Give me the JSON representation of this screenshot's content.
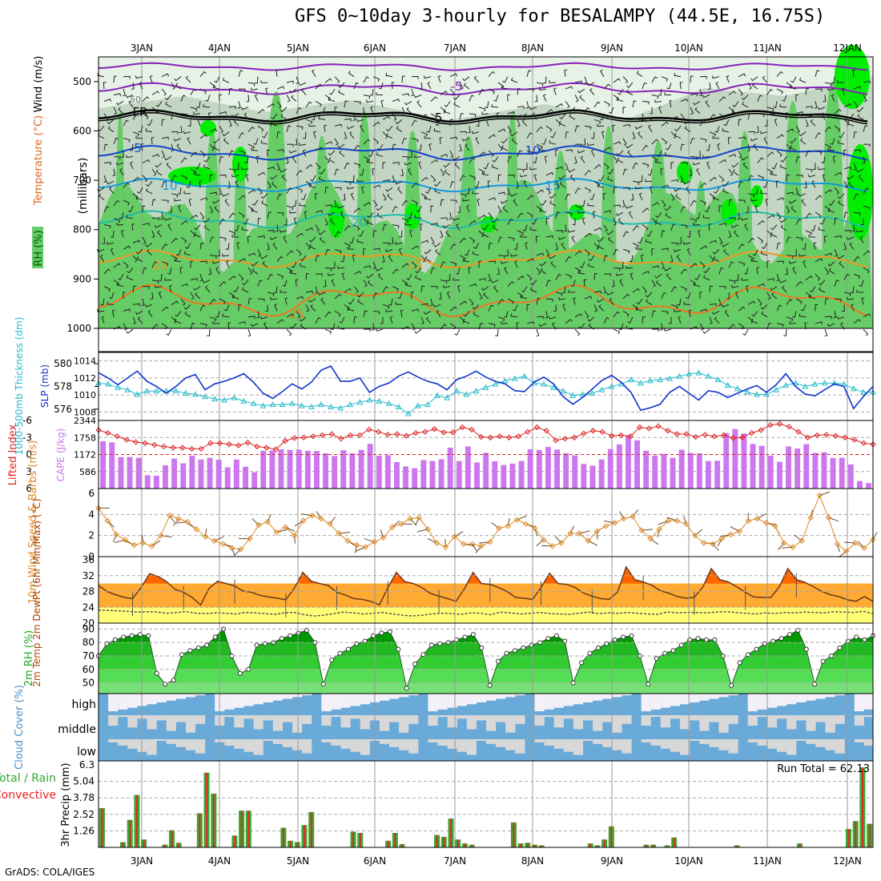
{
  "title": "GFS 0~10day 3-hourly for BESALAMPY (44.5E, 16.75S)",
  "footer": "GrADS: COLA/IGES",
  "dates": [
    "3JAN",
    "4JAN",
    "5JAN",
    "6JAN",
    "7JAN",
    "8JAN",
    "9JAN",
    "10JAN",
    "11JAN",
    "12JAN"
  ],
  "colors": {
    "rh_light": "#e6f2e6",
    "rh_mid": "#c3d6c3",
    "rh_green": "#66cc66",
    "rh_bright": "#00ee00",
    "temp_t_fill": "#ff6600",
    "temp_fill": "#ffaa33",
    "dew_fill": "#ffff77",
    "rh_dark": "#009900",
    "rh_med": "#33cc33",
    "rh_light2": "#66dd66",
    "cloud": "#6aaad8",
    "cloud_bg": "#d8d8d8",
    "cape": "#cc77ee",
    "li": "#dd2222",
    "slp": "#1133cc",
    "thick": "#22bbcc",
    "wind": "#dd8822",
    "rain_total": "#33aa33",
    "rain_conv": "#ee2222"
  },
  "chart_data": [
    {
      "type": "heatmap",
      "name": "upper",
      "ylabel_parts": [
        "RH (%)",
        "Temperature (°C)",
        "Wind (m/s)"
      ],
      "ylabel2": "(millibars)",
      "y_ticks": [
        "500",
        "600",
        "700",
        "800",
        "900",
        "1000"
      ],
      "ylim": [
        1000,
        450
      ],
      "isotherm_labels": [
        "-5",
        "FR",
        "-5",
        "5",
        "10",
        "10",
        "15",
        "20",
        "20",
        "25",
        "25"
      ],
      "contour_label": "50"
    },
    {
      "type": "line",
      "name": "slp_thickness",
      "ylabel_left": "1000-500mb Thickness (dm)",
      "ylabel_right": "SLP (mb)",
      "left_ticks": [
        "580",
        "578",
        "576"
      ],
      "right_ticks": [
        "1014",
        "1012",
        "1010",
        "1008"
      ],
      "slp": [
        1012.6,
        1012.0,
        1011.2,
        1012.0,
        1012.8,
        1011.6,
        1011.0,
        1010.2,
        1011.0,
        1012.0,
        1012.4,
        1010.6,
        1011.3,
        1011.6,
        1012.0,
        1012.5,
        1011.5,
        1010.2,
        1009.6,
        1010.4,
        1011.3,
        1010.7,
        1011.5,
        1012.9,
        1013.4,
        1011.6,
        1011.6,
        1012.0,
        1010.3,
        1011.0,
        1011.4,
        1012.2,
        1012.7,
        1012.1,
        1011.6,
        1011.3,
        1010.6,
        1011.8,
        1012.2,
        1012.8,
        1012.1,
        1011.6,
        1011.3,
        1010.5,
        1010.4,
        1011.5,
        1012.1,
        1011.3,
        1009.8,
        1008.9,
        1009.7,
        1010.7,
        1011.7,
        1012.3,
        1011.5,
        1010.3,
        1008.2,
        1008.5,
        1008.9,
        1010.3,
        1011.0,
        1010.2,
        1009.4,
        1010.5,
        1010.3,
        1009.7,
        1010.2,
        1010.7,
        1011.1,
        1010.3,
        1011.2,
        1012.5,
        1011.0,
        1010.1,
        1009.9,
        1010.6,
        1011.3,
        1011.0,
        1008.4,
        1009.8,
        1011.0
      ],
      "thickness": [
        578.3,
        578.2,
        577.9,
        577.7,
        577.3,
        577.6,
        577.6,
        577.6,
        577.6,
        577.4,
        577.3,
        577.1,
        576.9,
        576.8,
        577.0,
        576.7,
        576.5,
        576.3,
        576.4,
        576.4,
        576.5,
        576.3,
        576.2,
        576.4,
        576.2,
        576.1,
        576.4,
        576.6,
        576.8,
        576.7,
        576.5,
        576.2,
        575.6,
        576.3,
        576.4,
        577.2,
        577.0,
        577.6,
        577.3,
        577.6,
        577.9,
        578.2,
        578.5,
        578.7,
        578.9,
        578.3,
        578.2,
        577.9,
        577.6,
        577.2,
        577.3,
        577.4,
        577.7,
        578.0,
        578.2,
        578.6,
        578.3,
        578.5,
        578.6,
        578.7,
        578.9,
        579.1,
        579.2,
        578.9,
        578.6,
        578.1,
        577.8,
        577.5,
        577.3,
        577.3,
        577.7,
        578.1,
        578.3,
        578.0,
        578.2,
        578.3,
        578.3,
        578.2,
        577.8,
        577.5,
        577.5
      ]
    },
    {
      "type": "bar",
      "name": "cape_li",
      "ylabel_left": "Lifted Index",
      "ylabel_right": "CAPE (J/kg)",
      "li_ticks": [
        "-6",
        "-3",
        "0",
        "3",
        "6"
      ],
      "cape_ticks": [
        "2344",
        "1758",
        "1172",
        "586"
      ],
      "cape": [
        1630,
        1590,
        1080,
        1090,
        1060,
        460,
        440,
        800,
        1030,
        870,
        1130,
        1000,
        1060,
        990,
        730,
        1000,
        750,
        560,
        1300,
        1310,
        1350,
        1330,
        1340,
        1300,
        1290,
        1210,
        1120,
        1320,
        1210,
        1330,
        1540,
        1130,
        1150,
        910,
        760,
        700,
        980,
        950,
        1010,
        1410,
        950,
        1450,
        900,
        1230,
        940,
        810,
        860,
        950,
        1350,
        1330,
        1430,
        1340,
        1220,
        1140,
        850,
        790,
        1000,
        1360,
        1520,
        1830,
        1660,
        1300,
        1140,
        1190,
        1060,
        1340,
        1230,
        1210,
        950,
        960,
        1910,
        2050,
        1900,
        1540,
        1470,
        1130,
        920,
        1450,
        1380,
        1530,
        1230,
        1250,
        1050,
        1060,
        830,
        260,
        190
      ],
      "li": [
        -4.3,
        -3.8,
        -3.2,
        -2.6,
        -2.2,
        -2.0,
        -1.7,
        -1.4,
        -1.2,
        -1.2,
        -1.0,
        -1.0,
        -2.0,
        -2.0,
        -1.8,
        -1.6,
        -2.1,
        -1.4,
        -1.2,
        -0.9,
        -2.4,
        -2.9,
        -3.0,
        -3.2,
        -3.4,
        -3.6,
        -2.8,
        -3.4,
        -3.4,
        -4.4,
        -4.0,
        -3.5,
        -3.6,
        -3.3,
        -3.8,
        -4.0,
        -4.5,
        -3.9,
        -3.9,
        -4.8,
        -4.4,
        -3.1,
        -3.0,
        -3.2,
        -3.0,
        -3.2,
        -4.0,
        -4.8,
        -4.2,
        -2.5,
        -2.8,
        -3.0,
        -3.7,
        -4.2,
        -4.0,
        -3.3,
        -3.4,
        -3.2,
        -4.8,
        -4.6,
        -5.0,
        -4.2,
        -3.6,
        -3.6,
        -3.1,
        -3.5,
        -3.2,
        -3.4,
        -2.9,
        -3.0,
        -3.8,
        -4.3,
        -5.2,
        -5.4,
        -4.9,
        -4.0,
        -3.0,
        -3.4,
        -3.5,
        -3.3,
        -3.0,
        -2.6,
        -2.0,
        -1.8
      ]
    },
    {
      "type": "line",
      "name": "wind10m",
      "ylabel": "10m Wind Speed & Barbs (m/s)",
      "y_ticks": [
        "6",
        "4",
        "2",
        "0"
      ],
      "ylim": [
        0,
        6
      ],
      "speed": [
        4.6,
        3.4,
        2.1,
        1.6,
        1.1,
        1.3,
        1.0,
        2.0,
        3.9,
        3.6,
        3.3,
        2.6,
        1.9,
        1.5,
        1.2,
        0.8,
        0.7,
        1.7,
        3.0,
        3.3,
        2.3,
        2.8,
        2.0,
        3.4,
        3.9,
        3.6,
        3.1,
        2.2,
        1.5,
        1.1,
        0.9,
        1.4,
        1.8,
        2.8,
        3.1,
        3.6,
        3.7,
        2.6,
        1.3,
        0.9,
        1.9,
        1.2,
        1.2,
        1.0,
        1.4,
        2.7,
        2.9,
        3.5,
        3.1,
        2.7,
        1.6,
        1.0,
        1.3,
        2.2,
        2.2,
        1.5,
        2.4,
        2.9,
        3.2,
        3.6,
        3.8,
        2.5,
        1.7,
        2.6,
        3.4,
        3.4,
        3.1,
        2.0,
        1.3,
        1.2,
        1.7,
        2.1,
        2.4,
        3.4,
        3.6,
        3.2,
        2.9,
        1.3,
        0.9,
        1.5,
        3.7,
        5.8,
        3.7,
        1.2,
        0.5,
        1.3,
        0.8,
        1.6
      ]
    },
    {
      "type": "area",
      "name": "temp2m",
      "ylabel": "2m Temp 2m DewPt (6hr Min/Max) (°C)",
      "y_ticks": [
        "36",
        "32",
        "28",
        "24",
        "20"
      ],
      "ylim": [
        20,
        36
      ],
      "temp": [
        29.5,
        28.0,
        27.2,
        26.5,
        26.2,
        29.0,
        32.5,
        31.8,
        30.5,
        28.5,
        27.8,
        26.5,
        24.6,
        28.8,
        30.6,
        30.0,
        29.4,
        28.1,
        27.8,
        27.0,
        26.6,
        26.3,
        25.9,
        28.8,
        32.8,
        30.6,
        30.0,
        29.5,
        27.8,
        27.1,
        26.2,
        26.0,
        25.5,
        24.6,
        29.0,
        32.8,
        30.5,
        30.0,
        29.0,
        27.5,
        26.8,
        26.2,
        25.5,
        28.7,
        32.8,
        30.0,
        29.8,
        29.0,
        28.0,
        26.5,
        26.3,
        26.0,
        29.0,
        32.6,
        30.0,
        29.8,
        29.0,
        27.6,
        26.8,
        26.2,
        26.0,
        27.9,
        34.2,
        31.0,
        30.4,
        29.6,
        28.2,
        27.6,
        26.7,
        26.3,
        26.5,
        29.1,
        33.8,
        31.0,
        30.4,
        29.2,
        27.8,
        26.6,
        26.5,
        26.5,
        29.2,
        33.8,
        31.0,
        30.3,
        29.2,
        28.0,
        27.2,
        26.7,
        25.9,
        25.5,
        26.7,
        25.5
      ],
      "dew": [
        23.3,
        23.2,
        23.1,
        23.0,
        22.8,
        22.9,
        22.8,
        22.5,
        22.7,
        22.9,
        22.5,
        22.4,
        22.6,
        22.5,
        22.3,
        22.7,
        22.6,
        22.4,
        22.2,
        22.6,
        22.7,
        22.1,
        21.8,
        22.0,
        22.4,
        22.8,
        22.6,
        22.3,
        22.5,
        22.7,
        22.3,
        22.0,
        21.8,
        22.0,
        22.3,
        22.5,
        22.4,
        22.2,
        22.6,
        22.5,
        22.1,
        22.8,
        22.6,
        22.3,
        22.5,
        22.7,
        22.4,
        22.3,
        22.2,
        22.5,
        22.8,
        22.4,
        22.6,
        22.5,
        22.7,
        22.5,
        22.3,
        22.2,
        22.8,
        22.6,
        22.7,
        22.7,
        22.6,
        22.8,
        22.9,
        22.7,
        22.5,
        22.3,
        22.6,
        22.4,
        22.7,
        22.6,
        22.8,
        22.7,
        22.6,
        22.9,
        22.8,
        22.7,
        23.0,
        22.4
      ]
    },
    {
      "type": "area",
      "name": "rh2m",
      "ylabel": "2m RH (%)",
      "y_ticks": [
        "90",
        "80",
        "70",
        "60",
        "50"
      ],
      "ylim": [
        40,
        92
      ],
      "rh": [
        70,
        79,
        82,
        84,
        85,
        86,
        85,
        57,
        49,
        52,
        71,
        74,
        76,
        78,
        84,
        90,
        70,
        57,
        60,
        78,
        79,
        80,
        83,
        85,
        87,
        89,
        80,
        49,
        67,
        72,
        75,
        79,
        81,
        85,
        87,
        88,
        75,
        46,
        64,
        71,
        78,
        79,
        80,
        82,
        84,
        86,
        76,
        48,
        66,
        72,
        74,
        76,
        78,
        80,
        83,
        85,
        81,
        50,
        65,
        72,
        76,
        79,
        82,
        84,
        85,
        70,
        49,
        68,
        72,
        74,
        78,
        82,
        83,
        82,
        82,
        70,
        48,
        65,
        71,
        75,
        79,
        81,
        83,
        86,
        89,
        75,
        49,
        66,
        70,
        76,
        81,
        84,
        82,
        85
      ]
    },
    {
      "type": "heatmap",
      "name": "cloud",
      "ylabel": "Cloud Cover (%)",
      "levels": [
        "high",
        "middle",
        "low"
      ]
    },
    {
      "type": "bar",
      "name": "precip",
      "ylabel_parts": [
        "Total / Rain",
        "Convective",
        "3hr Precip (mm)"
      ],
      "y_ticks": [
        "6.3",
        "5.04",
        "3.78",
        "2.52",
        "1.26"
      ],
      "ylim": [
        0,
        6.3
      ],
      "run_total": "Run Total = 62.13",
      "total": [
        3.0,
        0,
        0,
        0.4,
        2.1,
        4.0,
        0.6,
        0,
        0,
        0.2,
        1.3,
        0.35,
        0,
        0,
        2.6,
        5.7,
        4.1,
        0,
        0,
        0.9,
        2.8,
        2.8,
        0,
        0,
        0,
        0,
        1.5,
        0.5,
        0.4,
        1.7,
        2.7,
        0,
        0,
        0,
        0,
        0,
        1.2,
        1.1,
        0,
        0,
        0,
        0.5,
        1.1,
        0.25,
        0,
        0,
        0,
        0,
        0.95,
        0.8,
        2.2,
        0.6,
        0.3,
        0.2,
        0,
        0,
        0,
        0,
        0,
        1.9,
        0.3,
        0.35,
        0.2,
        0.15,
        0,
        0,
        0,
        0,
        0,
        0,
        0.3,
        0.15,
        0.6,
        1.6,
        0,
        0,
        0,
        0,
        0.2,
        0.2,
        0,
        0.15,
        0.75,
        0,
        0,
        0,
        0,
        0,
        0,
        0,
        0,
        0.15,
        0,
        0,
        0,
        0,
        0,
        0,
        0,
        0,
        0.3,
        0,
        0,
        0,
        0,
        0,
        0,
        1.4,
        2.0,
        6.1,
        1.8
      ]
    }
  ]
}
